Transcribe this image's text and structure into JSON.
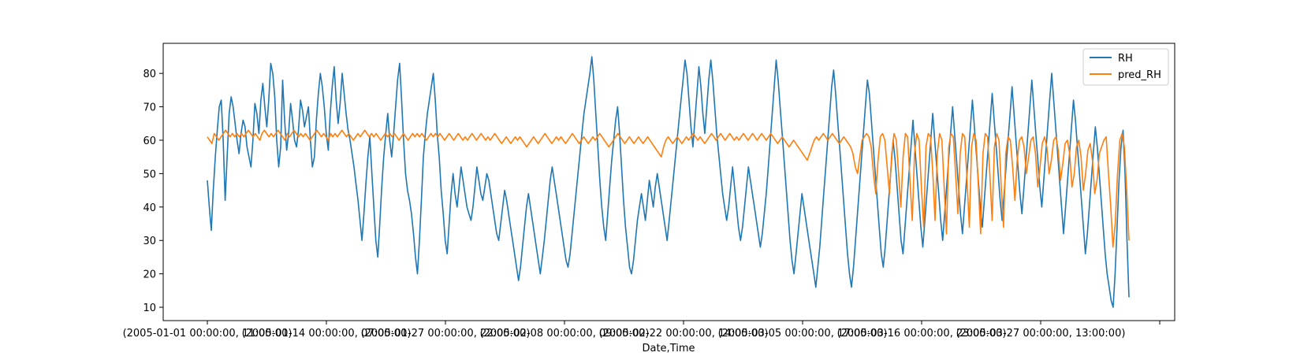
{
  "chart_data": {
    "type": "line",
    "title": "",
    "xlabel": "Date,Time",
    "ylabel": "",
    "ylim": [
      6,
      89
    ],
    "yticks": [
      10,
      20,
      30,
      40,
      50,
      60,
      70,
      80
    ],
    "xticks": [
      "(2005-01-01 00:00:00, 11:00:00)",
      "(2005-01-14 00:00:00, 07:00:00)",
      "(2005-01-27 00:00:00, 22:00:00)",
      "(2005-02-08 00:00:00, 09:00:00)",
      "(2005-02-22 00:00:00, 14:00:00)",
      "(2005-03-05 00:00:00, 17:00:00)",
      "(2005-03-16 00:00:00, 23:00:00)",
      "(2005-03-27 00:00:00, 13:00:00)",
      ""
    ],
    "grid": false,
    "legend_position": "top-right",
    "series": [
      {
        "name": "RH",
        "color": "#1f77b4",
        "values": [
          48,
          40,
          33,
          45,
          55,
          63,
          70,
          72,
          60,
          42,
          55,
          68,
          73,
          70,
          65,
          60,
          56,
          62,
          66,
          64,
          58,
          55,
          52,
          60,
          71,
          68,
          62,
          72,
          77,
          70,
          64,
          72,
          83,
          80,
          73,
          60,
          52,
          58,
          78,
          66,
          57,
          62,
          71,
          66,
          60,
          58,
          63,
          72,
          69,
          64,
          67,
          70,
          60,
          52,
          55,
          66,
          74,
          80,
          76,
          70,
          62,
          57,
          68,
          76,
          82,
          72,
          65,
          71,
          80,
          74,
          68,
          63,
          60,
          56,
          52,
          47,
          42,
          36,
          30,
          38,
          47,
          55,
          61,
          50,
          40,
          30,
          25,
          35,
          46,
          55,
          62,
          68,
          60,
          55,
          62,
          70,
          78,
          83,
          72,
          60,
          50,
          45,
          42,
          38,
          32,
          25,
          20,
          30,
          42,
          55,
          62,
          68,
          72,
          76,
          80,
          72,
          62,
          55,
          45,
          38,
          30,
          26,
          35,
          44,
          50,
          44,
          40,
          46,
          52,
          48,
          44,
          40,
          38,
          36,
          40,
          46,
          52,
          48,
          44,
          42,
          46,
          50,
          48,
          44,
          40,
          36,
          32,
          30,
          35,
          40,
          45,
          42,
          38,
          34,
          30,
          26,
          22,
          18,
          22,
          28,
          34,
          40,
          44,
          40,
          36,
          32,
          28,
          24,
          20,
          25,
          30,
          36,
          42,
          48,
          52,
          48,
          44,
          40,
          36,
          32,
          28,
          24,
          22,
          26,
          32,
          38,
          44,
          50,
          56,
          62,
          68,
          72,
          76,
          80,
          85,
          78,
          68,
          58,
          48,
          40,
          34,
          30,
          38,
          46,
          54,
          60,
          66,
          70,
          62,
          52,
          42,
          34,
          28,
          22,
          20,
          24,
          30,
          36,
          40,
          44,
          40,
          36,
          42,
          48,
          44,
          40,
          46,
          50,
          46,
          42,
          38,
          34,
          30,
          36,
          42,
          48,
          54,
          60,
          66,
          72,
          78,
          84,
          80,
          72,
          64,
          58,
          66,
          74,
          82,
          76,
          68,
          62,
          70,
          78,
          84,
          78,
          70,
          62,
          56,
          50,
          44,
          40,
          36,
          40,
          46,
          52,
          46,
          40,
          34,
          30,
          34,
          40,
          46,
          52,
          48,
          44,
          40,
          36,
          32,
          28,
          32,
          38,
          44,
          52,
          60,
          68,
          76,
          84,
          78,
          70,
          62,
          54,
          46,
          38,
          30,
          24,
          20,
          26,
          32,
          38,
          44,
          40,
          36,
          32,
          28,
          24,
          20,
          16,
          22,
          28,
          36,
          44,
          52,
          60,
          68,
          76,
          81,
          74,
          66,
          58,
          50,
          42,
          34,
          26,
          20,
          16,
          22,
          30,
          38,
          46,
          54,
          62,
          70,
          78,
          74,
          66,
          58,
          50,
          42,
          34,
          26,
          22,
          28,
          36,
          44,
          52,
          60,
          54,
          46,
          38,
          30,
          26,
          34,
          42,
          50,
          58,
          66,
          58,
          50,
          42,
          34,
          28,
          36,
          44,
          52,
          60,
          68,
          60,
          52,
          44,
          36,
          30,
          38,
          46,
          54,
          62,
          70,
          62,
          54,
          46,
          38,
          32,
          40,
          48,
          56,
          64,
          72,
          64,
          56,
          48,
          40,
          34,
          42,
          50,
          58,
          66,
          74,
          66,
          58,
          50,
          42,
          36,
          44,
          52,
          60,
          68,
          76,
          68,
          60,
          52,
          44,
          38,
          46,
          54,
          62,
          70,
          78,
          70,
          62,
          54,
          46,
          40,
          48,
          56,
          64,
          72,
          80,
          72,
          64,
          56,
          48,
          40,
          32,
          40,
          48,
          56,
          64,
          72,
          66,
          58,
          50,
          42,
          34,
          26,
          32,
          40,
          48,
          56,
          64,
          58,
          50,
          42,
          34,
          26,
          20,
          16,
          12,
          10,
          20,
          34,
          48,
          58,
          63,
          50,
          30,
          13
        ]
      },
      {
        "name": "pred_RH",
        "color": "#ff7f0e",
        "values": [
          61,
          60,
          59,
          62,
          61,
          60,
          61,
          62,
          63,
          62,
          61,
          62,
          61,
          62,
          61,
          62,
          61,
          62,
          63,
          62,
          61,
          62,
          61,
          60,
          62,
          63,
          62,
          61,
          62,
          61,
          62,
          63,
          62,
          61,
          60,
          62,
          61,
          62,
          63,
          62,
          61,
          62,
          61,
          62,
          61,
          60,
          61,
          62,
          63,
          62,
          61,
          62,
          61,
          60,
          62,
          61,
          62,
          61,
          62,
          63,
          62,
          61,
          62,
          61,
          60,
          61,
          62,
          61,
          62,
          63,
          62,
          61,
          62,
          61,
          62,
          61,
          60,
          61,
          62,
          61,
          62,
          61,
          62,
          61,
          60,
          61,
          62,
          61,
          60,
          61,
          62,
          61,
          62,
          61,
          62,
          61,
          60,
          61,
          62,
          61,
          62,
          61,
          62,
          61,
          60,
          61,
          62,
          61,
          60,
          61,
          62,
          61,
          60,
          61,
          60,
          61,
          62,
          61,
          60,
          61,
          62,
          61,
          60,
          61,
          60,
          61,
          62,
          61,
          60,
          59,
          60,
          61,
          60,
          59,
          60,
          61,
          60,
          61,
          60,
          59,
          58,
          59,
          60,
          61,
          60,
          59,
          60,
          61,
          62,
          61,
          60,
          59,
          60,
          61,
          60,
          61,
          60,
          59,
          60,
          61,
          62,
          61,
          60,
          59,
          60,
          61,
          60,
          59,
          60,
          61,
          60,
          61,
          62,
          61,
          60,
          59,
          58,
          59,
          60,
          61,
          62,
          61,
          60,
          59,
          60,
          61,
          60,
          59,
          60,
          61,
          60,
          59,
          60,
          61,
          60,
          59,
          58,
          57,
          56,
          55,
          58,
          60,
          61,
          60,
          59,
          60,
          61,
          60,
          59,
          60,
          61,
          60,
          61,
          62,
          61,
          60,
          61,
          60,
          59,
          60,
          61,
          62,
          61,
          60,
          61,
          62,
          61,
          60,
          61,
          62,
          61,
          60,
          61,
          60,
          61,
          62,
          61,
          60,
          61,
          62,
          61,
          60,
          61,
          62,
          61,
          60,
          61,
          62,
          61,
          60,
          59,
          60,
          61,
          60,
          59,
          58,
          59,
          60,
          59,
          58,
          57,
          56,
          55,
          54,
          56,
          58,
          60,
          61,
          60,
          61,
          62,
          61,
          60,
          61,
          62,
          61,
          60,
          59,
          60,
          61,
          60,
          59,
          58,
          56,
          52,
          50,
          55,
          60,
          61,
          62,
          61,
          58,
          50,
          44,
          54,
          61,
          62,
          60,
          52,
          44,
          56,
          62,
          60,
          50,
          40,
          55,
          62,
          61,
          48,
          36,
          56,
          62,
          60,
          46,
          34,
          58,
          62,
          61,
          50,
          36,
          56,
          62,
          60,
          46,
          32,
          58,
          62,
          61,
          50,
          38,
          56,
          62,
          61,
          48,
          34,
          58,
          62,
          60,
          46,
          32,
          56,
          62,
          61,
          50,
          36,
          58,
          62,
          60,
          46,
          34,
          56,
          61,
          60,
          52,
          42,
          54,
          60,
          61,
          58,
          50,
          55,
          60,
          61,
          56,
          46,
          52,
          59,
          61,
          58,
          50,
          54,
          60,
          61,
          57,
          48,
          53,
          59,
          60,
          56,
          46,
          50,
          58,
          60,
          55,
          45,
          50,
          57,
          59,
          54,
          44,
          48,
          56,
          58,
          60,
          61,
          50,
          40,
          28,
          35,
          50,
          60,
          62,
          58,
          45,
          30
        ]
      }
    ]
  }
}
